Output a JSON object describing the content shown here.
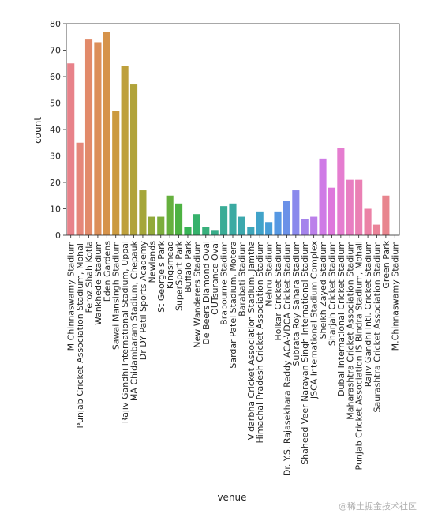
{
  "chart_data": {
    "type": "bar",
    "xlabel": "venue",
    "ylabel": "count",
    "ylim": [
      0,
      80
    ],
    "yticks": [
      0,
      10,
      20,
      30,
      40,
      50,
      60,
      70,
      80
    ],
    "grid": false,
    "categories": [
      "M Chinnaswamy Stadium",
      "Punjab Cricket Association Stadium, Mohali",
      "Feroz Shah Kotla",
      "Wankhede Stadium",
      "Eden Gardens",
      "Sawai Mansingh Stadium",
      "Rajiv Gandhi International Stadium, Uppal",
      "MA Chidambaram Stadium, Chepauk",
      "Dr DY Patil Sports Academy",
      "Newlands",
      "St George's Park",
      "Kingsmead",
      "SuperSport Park",
      "Buffalo Park",
      "New Wanderers Stadium",
      "De Beers Diamond Oval",
      "OUTsurance Oval",
      "Brabourne Stadium",
      "Sardar Patel Stadium, Motera",
      "Barabati Stadium",
      "Vidarbha Cricket Association Stadium, Jamtha",
      "Himachal Pradesh Cricket Association Stadium",
      "Nehru Stadium",
      "Holkar Cricket Stadium",
      "Dr. Y.S. Rajasekhara Reddy ACA-VDCA Cricket Stadium",
      "Subrata Roy Sahara Stadium",
      "Shaheed Veer Narayan Singh International Stadium",
      "JSCA International Stadium Complex",
      "Sheikh Zayed Stadium",
      "Sharjah Cricket Stadium",
      "Dubai International Cricket Stadium",
      "Maharashtra Cricket Association Stadium",
      "Punjab Cricket Association IS Bindra Stadium, Mohali",
      "Rajiv Gandhi Intl. Cricket Stadium",
      "Saurashtra Cricket Association Stadium",
      "Green Park",
      "M.Chinnaswamy Stadium"
    ],
    "values": [
      65,
      35,
      74,
      73,
      77,
      47,
      64,
      57,
      17,
      7,
      7,
      15,
      12,
      3,
      8,
      3,
      2,
      11,
      12,
      7,
      3,
      9,
      5,
      9,
      13,
      17,
      6,
      7,
      29,
      18,
      33,
      21,
      21,
      10,
      4,
      15,
      0
    ],
    "colors": [
      "#e8828a",
      "#e5877a",
      "#e28a6a",
      "#dc8f5a",
      "#d6934a",
      "#cb9a3f",
      "#bea03c",
      "#b1a33a",
      "#a5a63a",
      "#92a93a",
      "#7cad3c",
      "#66b03e",
      "#4db242",
      "#37b456",
      "#36b26c",
      "#38b07c",
      "#39ae8a",
      "#3aac96",
      "#3baaa2",
      "#3ca8ad",
      "#3ea6ba",
      "#41a3c9",
      "#489ed8",
      "#5698e3",
      "#6b91e8",
      "#8a89ec",
      "#a584ec",
      "#bb80ea",
      "#cf7be6",
      "#de78dc",
      "#e57dd0",
      "#e87ec2",
      "#ea80b4",
      "#eb81a6",
      "#ea8399",
      "#e8858e",
      "#e8828a"
    ]
  },
  "watermark": "@稀土掘金技术社区"
}
